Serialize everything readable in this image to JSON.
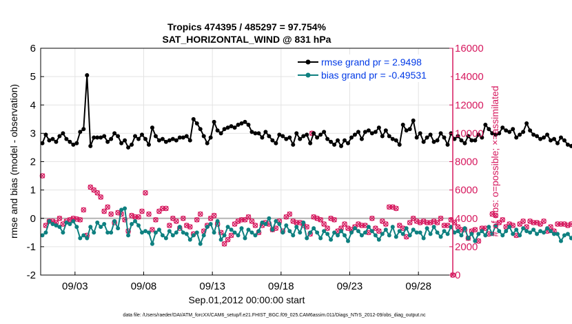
{
  "chart_data": {
    "type": "line",
    "title": "Tropics 474395 / 485297 = 97.754%",
    "subtitle": "SAT_HORIZONTAL_WIND @ 831 hPa",
    "xlabel": "Sep.01,2012 00:00:00 start",
    "ylabel": "rmse and bias (model - observation)",
    "y2label": "# of obs: o=possible; ×=assimilated",
    "xlim": [
      0.5,
      30.5
    ],
    "ylim": [
      -2,
      6
    ],
    "y2lim": [
      0,
      16000
    ],
    "x_ticks": [
      {
        "x": 3,
        "label": "09/03"
      },
      {
        "x": 8,
        "label": "09/08"
      },
      {
        "x": 13,
        "label": "09/13"
      },
      {
        "x": 18,
        "label": "09/18"
      },
      {
        "x": 23,
        "label": "09/23"
      },
      {
        "x": 28,
        "label": "09/28"
      }
    ],
    "y_ticks": [
      -2,
      -1,
      0,
      1,
      2,
      3,
      4,
      5,
      6
    ],
    "y_tick_labels": [
      "-2",
      "-1",
      "0",
      "1",
      "2",
      "3",
      "4",
      "5",
      "6"
    ],
    "y2_ticks": [
      0,
      2000,
      4000,
      6000,
      8000,
      10000,
      12000,
      14000,
      16000
    ],
    "y2_tick_labels": [
      "0",
      "2000",
      "4000",
      "6000",
      "8000",
      "10000",
      "12000",
      "14000",
      "16000"
    ],
    "zero_line": 0,
    "grid": true,
    "legend_position": "top-right",
    "series": [
      {
        "name": "rmse grand pr = 2.9498",
        "axis": "left",
        "color": "#000000",
        "marker": "circle",
        "start": 0.625,
        "step": 0.25,
        "values": [
          2.65,
          2.95,
          2.75,
          2.8,
          2.7,
          2.9,
          3.0,
          2.8,
          2.7,
          2.6,
          2.65,
          3.05,
          3.15,
          5.05,
          2.55,
          2.85,
          2.85,
          2.85,
          2.9,
          2.7,
          2.8,
          3.0,
          2.9,
          2.65,
          2.75,
          2.5,
          2.6,
          2.9,
          2.8,
          2.95,
          2.8,
          2.6,
          3.2,
          2.9,
          2.75,
          2.8,
          2.7,
          2.75,
          2.8,
          2.75,
          2.85,
          2.85,
          2.9,
          2.75,
          3.5,
          3.35,
          3.15,
          2.9,
          2.65,
          2.85,
          3.4,
          3.1,
          3.0,
          3.15,
          3.2,
          3.25,
          3.2,
          3.3,
          3.35,
          3.4,
          3.3,
          3.05,
          3.0,
          3.0,
          2.85,
          3.05,
          2.9,
          2.75,
          2.65,
          2.95,
          2.9,
          2.8,
          2.85,
          2.6,
          3.0,
          2.8,
          2.9,
          2.95,
          2.65,
          3.0,
          2.85,
          2.95,
          3.05,
          2.8,
          2.7,
          2.6,
          2.75,
          2.55,
          2.75,
          2.65,
          2.85,
          2.95,
          3.05,
          2.8,
          3.05,
          3.1,
          3.0,
          3.05,
          3.2,
          2.9,
          3.1,
          2.9,
          2.8,
          2.75,
          2.6,
          3.3,
          3.1,
          3.15,
          3.45,
          2.85,
          3.0,
          2.7,
          2.85,
          2.95,
          2.7,
          2.75,
          3.0,
          2.85,
          2.6,
          3.0,
          2.8,
          2.9,
          2.75,
          2.65,
          2.9,
          2.75,
          2.75,
          2.95,
          2.85,
          3.3,
          3.15,
          3.0,
          2.95,
          3.0,
          3.2,
          3.1,
          3.05,
          3.15,
          2.85,
          2.95,
          3.05,
          3.35,
          3.1,
          2.95,
          2.9,
          2.8,
          2.85,
          2.95,
          2.75,
          2.8,
          2.65,
          2.85,
          2.75,
          2.6,
          2.55,
          2.75,
          2.8,
          2.75,
          2.8,
          2.9,
          3.05,
          2.95,
          2.7,
          3.0,
          3.2,
          2.65,
          2.75,
          2.9,
          2.95,
          2.85,
          3.05,
          3.3,
          3.15,
          3.2,
          3.1,
          3.0,
          2.85,
          2.9,
          2.75,
          3.0,
          2.8,
          2.75,
          2.85,
          2.95,
          2.9,
          2.85,
          3.0,
          3.05
        ]
      },
      {
        "name": "bias grand pr = -0.49531",
        "axis": "left",
        "color": "#0e8080",
        "marker": "circle",
        "start": 0.625,
        "step": 0.25,
        "values": [
          -0.6,
          -0.5,
          -0.1,
          -0.2,
          -0.25,
          -0.3,
          -0.5,
          -0.15,
          -0.2,
          -0.1,
          -0.3,
          -0.7,
          -0.6,
          -0.7,
          -0.3,
          -0.5,
          -0.15,
          -0.3,
          -0.2,
          -0.5,
          -0.5,
          -0.1,
          -0.35,
          0.3,
          0.35,
          -0.6,
          -0.2,
          -0.1,
          -0.25,
          -0.5,
          -0.45,
          -0.5,
          -0.9,
          -0.5,
          -0.4,
          -0.6,
          -0.7,
          -0.45,
          -0.6,
          -0.5,
          -0.3,
          -0.5,
          -0.55,
          -0.75,
          -0.6,
          -0.5,
          -0.9,
          -0.6,
          -0.3,
          -0.2,
          -0.5,
          -0.1,
          -0.75,
          -0.6,
          -0.3,
          -0.4,
          -0.5,
          -0.6,
          -0.35,
          -0.7,
          -0.4,
          -0.5,
          -0.6,
          -0.45,
          -0.15,
          -0.2,
          0.0,
          -0.4,
          -0.1,
          -0.2,
          -0.5,
          -0.25,
          -0.45,
          -0.6,
          -0.3,
          -0.5,
          -0.15,
          -0.7,
          -0.5,
          -0.35,
          -0.5,
          -0.7,
          -0.45,
          -0.55,
          -0.75,
          -0.5,
          -0.6,
          -0.45,
          -0.6,
          -0.8,
          -0.5,
          -0.35,
          -0.45,
          -0.6,
          -0.5,
          -0.3,
          -0.45,
          -0.6,
          -0.75,
          -0.55,
          -0.4,
          -0.6,
          -0.3,
          -0.65,
          -0.45,
          -0.55,
          -0.35,
          -0.6,
          -0.4,
          -0.5,
          -0.5,
          -0.7,
          -0.35,
          -0.55,
          -0.3,
          -0.5,
          -0.65,
          -0.45,
          -0.55,
          -0.3,
          -0.5,
          -0.45,
          -0.6,
          -0.35,
          -0.7,
          -0.55,
          -0.8,
          -0.55,
          -0.45,
          -0.6,
          -0.3,
          -0.55,
          -0.25,
          -0.45,
          -0.6,
          -0.45,
          -0.3,
          -0.55,
          -0.4,
          -0.6,
          -0.35,
          -0.45,
          -0.5,
          -0.4,
          -0.55,
          -0.45,
          -0.5,
          -0.35,
          -0.45,
          -0.55,
          -0.55,
          -0.8,
          -0.6,
          -0.55,
          -0.7,
          -0.45,
          -0.75,
          -0.55,
          -0.7,
          -0.65,
          -0.5,
          -0.75,
          -0.55,
          -0.65,
          -0.75,
          -0.6,
          -0.7,
          -0.55,
          -0.5,
          -0.75,
          -0.65,
          -0.5,
          -0.6,
          -0.45,
          -0.7,
          -0.5,
          -0.55,
          -0.4,
          -0.6,
          -0.5,
          -0.45,
          -0.6,
          -0.3,
          -0.5,
          -0.35,
          -0.45,
          -0.2,
          -0.15,
          -0.25,
          -0.15
        ]
      },
      {
        "name": "# of obs possible",
        "axis": "right",
        "color": "#d6185e",
        "marker": "circle",
        "start": 0.625,
        "step": 0.25,
        "values": [
          7000,
          3500,
          3800,
          3800,
          3700,
          4000,
          3600,
          3800,
          3900,
          4000,
          3950,
          3900,
          4600,
          2800,
          6200,
          6000,
          5800,
          5500,
          4500,
          4800,
          4300,
          3700,
          4400,
          4300,
          3900,
          3100,
          4200,
          4100,
          4100,
          4500,
          5800,
          4300,
          3200,
          3900,
          4500,
          4700,
          4700,
          3500,
          4000,
          3800,
          3300,
          4000,
          3500,
          3400,
          2900,
          3900,
          4300,
          3100,
          3500,
          4000,
          4200,
          3600,
          3000,
          2200,
          2500,
          2800,
          3600,
          3800,
          3900,
          3900,
          4100,
          3800,
          3500,
          3000,
          3500,
          3700,
          3600,
          3200,
          3300,
          3800,
          3100,
          4100,
          4300,
          3800,
          3700,
          3700,
          3500,
          3400,
          2900,
          4100,
          4000,
          3900,
          3600,
          3300,
          4000,
          3900,
          3100,
          3300,
          3600,
          3300,
          3200,
          3400,
          3600,
          3500,
          3500,
          3000,
          4000,
          3300,
          3100,
          3800,
          3600,
          4800,
          4800,
          4700,
          3500,
          3300,
          2700,
          3700,
          4000,
          3800,
          3700,
          3800,
          3700,
          3700,
          3800,
          3700,
          4000,
          3500,
          3500,
          3900,
          3700,
          3400,
          3200,
          3200,
          2600,
          3100,
          3200,
          2400,
          3300,
          3300,
          2900,
          4300,
          4200,
          3700,
          3900,
          3400,
          3600,
          3500,
          2800,
          3600,
          3800,
          3400,
          3800,
          3700,
          3700,
          3600,
          3800,
          3100,
          3400,
          3100,
          3600,
          3600,
          3600,
          3500,
          3600,
          3300,
          3800,
          4000,
          3800,
          3700,
          3600,
          3500,
          3900,
          3700,
          3800,
          4100,
          3900,
          3800,
          3800,
          3600,
          3600,
          3500,
          3900,
          4100,
          4300,
          4900,
          4800,
          4500,
          4400,
          4200,
          3900,
          3700,
          4900,
          5400,
          4600,
          4800,
          5300,
          4600
        ]
      },
      {
        "name": "# of obs assimilated",
        "axis": "right",
        "color": "#d6185e",
        "marker": "x",
        "start": 0.625,
        "step": 0.25,
        "values": [
          7000,
          3500,
          3800,
          3800,
          3700,
          4000,
          3600,
          3800,
          3900,
          4000,
          3950,
          3900,
          4600,
          2800,
          6200,
          6000,
          5800,
          5500,
          4500,
          4800,
          4300,
          3700,
          4400,
          4300,
          3900,
          3100,
          4200,
          4100,
          4100,
          4500,
          5800,
          4300,
          3200,
          3900,
          4500,
          4700,
          4700,
          3500,
          4000,
          3800,
          3300,
          4000,
          3500,
          3400,
          2900,
          3900,
          4300,
          3100,
          3500,
          4000,
          4200,
          3600,
          3000,
          2200,
          2500,
          2800,
          3600,
          3800,
          3900,
          3900,
          4100,
          3800,
          3500,
          3000,
          3500,
          3700,
          3600,
          3200,
          3300,
          3800,
          3100,
          4100,
          4300,
          3800,
          3700,
          3700,
          3500,
          3400,
          2900,
          4100,
          4000,
          3900,
          3600,
          3300,
          4000,
          3900,
          3100,
          3300,
          3600,
          3300,
          3200,
          3400,
          3600,
          3500,
          3500,
          3000,
          4000,
          3300,
          3100,
          3800,
          3600,
          4800,
          4800,
          4700,
          3500,
          3300,
          2700,
          3700,
          4000,
          3800,
          3700,
          3800,
          3700,
          3700,
          3800,
          3700,
          4000,
          3500,
          3500,
          3900,
          3700,
          3400,
          3200,
          3200,
          2600,
          3100,
          3200,
          2400,
          3300,
          3300,
          2900,
          4300,
          4200,
          3700,
          3900,
          3400,
          3600,
          3500,
          2800,
          3600,
          3800,
          3400,
          3800,
          3700,
          3700,
          3600,
          3800,
          3100,
          3400,
          3100,
          3600,
          3600,
          3600,
          3500,
          3600,
          3300,
          3800,
          4000,
          3800,
          3700,
          3600,
          3500,
          3900,
          3700,
          3800,
          4100,
          3900,
          3800,
          3800,
          3600,
          3600,
          3500,
          3900,
          4100,
          4300,
          4900,
          4800,
          4500,
          4400,
          4200,
          3900,
          3700,
          4900,
          5400,
          4600,
          4800,
          5300,
          4600
        ]
      }
    ],
    "extra_points": [
      {
        "series": "# of obs possible",
        "x": 20.25,
        "value": 10000
      },
      {
        "series": "# of obs possible",
        "x": 30.5,
        "value": 0
      }
    ]
  },
  "legend": {
    "rmse_label": "rmse grand pr = 2.9498",
    "bias_label": "bias grand pr = -0.49531"
  },
  "footer": {
    "data_file": "data file: /Users/raeder/DAI/ATM_forcXX/CAM6_setup/f.e21.FHIST_BGC.f09_025.CAM6assim.011/Diags_NTrS_2012-09/obs_diag_output.nc"
  },
  "colors": {
    "rmse": "#000000",
    "bias": "#0e8080",
    "obs": "#d6185e",
    "legend_text": "#0039e6",
    "grid": "#e3e3e3",
    "zero_line": "#b5b5b5"
  }
}
